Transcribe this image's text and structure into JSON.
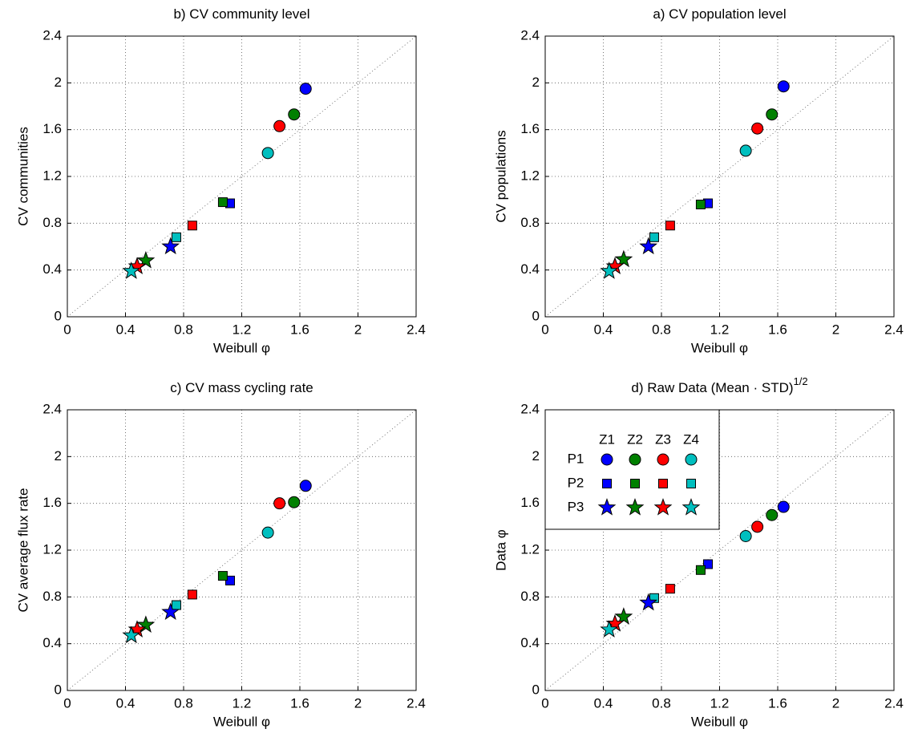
{
  "chart_data": [
    {
      "type": "scatter",
      "title": "b) CV community level",
      "xlabel": "Weibull φ",
      "ylabel": "CV communities",
      "xlim": [
        0,
        2.4
      ],
      "ylim": [
        0,
        2.4
      ],
      "xticks": [
        0,
        0.4,
        0.8,
        1.2,
        1.6,
        2,
        2.4
      ],
      "yticks": [
        0,
        0.4,
        0.8,
        1.2,
        1.6,
        2,
        2.4
      ],
      "grid": true,
      "diagonal": true,
      "series": [
        {
          "marker": "circle",
          "colors": [
            "#0000ff",
            "#008000",
            "#ff0000",
            "#00bfbf"
          ],
          "x": [
            1.64,
            1.56,
            1.46,
            1.38
          ],
          "y": [
            1.95,
            1.73,
            1.63,
            1.4
          ]
        },
        {
          "marker": "square",
          "colors": [
            "#0000ff",
            "#008000",
            "#ff0000",
            "#00bfbf"
          ],
          "x": [
            1.12,
            1.07,
            0.86,
            0.75
          ],
          "y": [
            0.97,
            0.98,
            0.78,
            0.68
          ]
        },
        {
          "marker": "star",
          "colors": [
            "#0000ff",
            "#008000",
            "#ff0000",
            "#00bfbf"
          ],
          "x": [
            0.71,
            0.54,
            0.48,
            0.44
          ],
          "y": [
            0.6,
            0.48,
            0.43,
            0.39
          ]
        }
      ]
    },
    {
      "type": "scatter",
      "title": "a) CV population level",
      "xlabel": "Weibull φ",
      "ylabel": "CV populations",
      "xlim": [
        0,
        2.4
      ],
      "ylim": [
        0,
        2.4
      ],
      "xticks": [
        0,
        0.4,
        0.8,
        1.2,
        1.6,
        2,
        2.4
      ],
      "yticks": [
        0,
        0.4,
        0.8,
        1.2,
        1.6,
        2,
        2.4
      ],
      "grid": true,
      "diagonal": true,
      "series": [
        {
          "marker": "circle",
          "colors": [
            "#0000ff",
            "#008000",
            "#ff0000",
            "#00bfbf"
          ],
          "x": [
            1.64,
            1.56,
            1.46,
            1.38
          ],
          "y": [
            1.97,
            1.73,
            1.61,
            1.42
          ]
        },
        {
          "marker": "square",
          "colors": [
            "#0000ff",
            "#008000",
            "#ff0000",
            "#00bfbf"
          ],
          "x": [
            1.12,
            1.07,
            0.86,
            0.75
          ],
          "y": [
            0.97,
            0.96,
            0.78,
            0.68
          ]
        },
        {
          "marker": "star",
          "colors": [
            "#0000ff",
            "#008000",
            "#ff0000",
            "#00bfbf"
          ],
          "x": [
            0.71,
            0.54,
            0.48,
            0.44
          ],
          "y": [
            0.6,
            0.49,
            0.43,
            0.39
          ]
        }
      ]
    },
    {
      "type": "scatter",
      "title": "c) CV mass cycling rate",
      "xlabel": "Weibull φ",
      "ylabel": "CV average flux rate",
      "xlim": [
        0,
        2.4
      ],
      "ylim": [
        0,
        2.4
      ],
      "xticks": [
        0,
        0.4,
        0.8,
        1.2,
        1.6,
        2,
        2.4
      ],
      "yticks": [
        0,
        0.4,
        0.8,
        1.2,
        1.6,
        2,
        2.4
      ],
      "grid": true,
      "diagonal": true,
      "series": [
        {
          "marker": "circle",
          "colors": [
            "#0000ff",
            "#008000",
            "#ff0000",
            "#00bfbf"
          ],
          "x": [
            1.64,
            1.56,
            1.46,
            1.38
          ],
          "y": [
            1.75,
            1.61,
            1.6,
            1.35
          ]
        },
        {
          "marker": "square",
          "colors": [
            "#0000ff",
            "#008000",
            "#ff0000",
            "#00bfbf"
          ],
          "x": [
            1.12,
            1.07,
            0.86,
            0.75
          ],
          "y": [
            0.94,
            0.98,
            0.82,
            0.73
          ]
        },
        {
          "marker": "star",
          "colors": [
            "#0000ff",
            "#008000",
            "#ff0000",
            "#00bfbf"
          ],
          "x": [
            0.71,
            0.54,
            0.48,
            0.44
          ],
          "y": [
            0.67,
            0.56,
            0.52,
            0.47
          ]
        }
      ]
    },
    {
      "type": "scatter",
      "title": "d) Raw Data (Mean · STD)",
      "title_superscript": "1/2",
      "xlabel": "Weibull φ",
      "ylabel": "Data φ",
      "xlim": [
        0,
        2.4
      ],
      "ylim": [
        0,
        2.4
      ],
      "xticks": [
        0,
        0.4,
        0.8,
        1.2,
        1.6,
        2,
        2.4
      ],
      "yticks": [
        0,
        0.4,
        0.8,
        1.2,
        1.6,
        2,
        2.4
      ],
      "grid": true,
      "diagonal": true,
      "legend": {
        "corner": "upper left",
        "columns": [
          "Z1",
          "Z2",
          "Z3",
          "Z4"
        ],
        "rows": [
          "P1",
          "P2",
          "P3"
        ]
      },
      "series": [
        {
          "marker": "circle",
          "colors": [
            "#0000ff",
            "#008000",
            "#ff0000",
            "#00bfbf"
          ],
          "x": [
            1.64,
            1.56,
            1.46,
            1.38
          ],
          "y": [
            1.57,
            1.5,
            1.4,
            1.32
          ]
        },
        {
          "marker": "square",
          "colors": [
            "#0000ff",
            "#008000",
            "#ff0000",
            "#00bfbf"
          ],
          "x": [
            1.12,
            1.07,
            0.86,
            0.75
          ],
          "y": [
            1.08,
            1.03,
            0.87,
            0.79
          ]
        },
        {
          "marker": "star",
          "colors": [
            "#0000ff",
            "#008000",
            "#ff0000",
            "#00bfbf"
          ],
          "x": [
            0.71,
            0.54,
            0.48,
            0.44
          ],
          "y": [
            0.75,
            0.63,
            0.57,
            0.52
          ]
        }
      ]
    }
  ]
}
